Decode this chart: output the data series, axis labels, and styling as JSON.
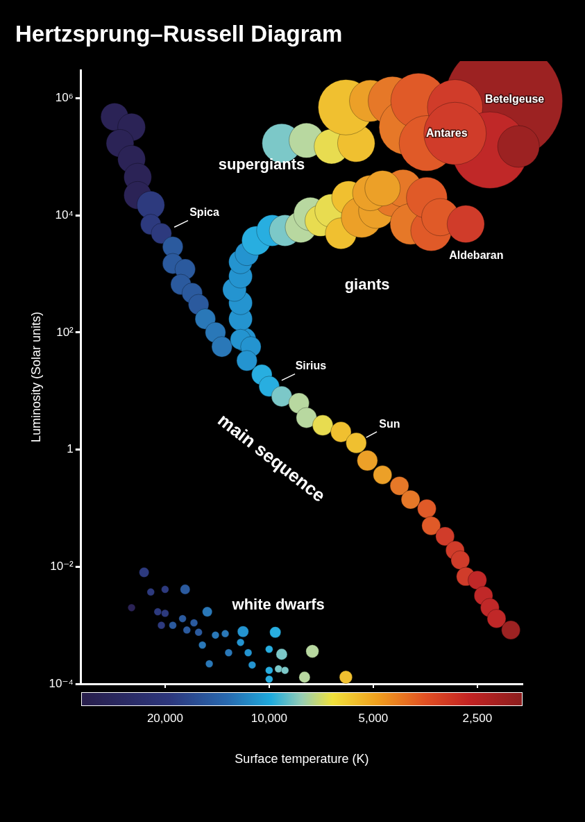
{
  "chart_data": {
    "type": "bubble",
    "title": "Hertzsprung–Russell Diagram",
    "xlabel": "Surface temperature (K)",
    "ylabel": "Luminosity (Solar units)",
    "log": "xy",
    "xlim": [
      35000,
      1850
    ],
    "xticks": [
      {
        "value": 20000,
        "label": "20,000"
      },
      {
        "value": 10000,
        "label": "10,000"
      },
      {
        "value": 5000,
        "label": "5,000"
      },
      {
        "value": 2500,
        "label": "2,500"
      }
    ],
    "ylim": [
      0.0001,
      3000000
    ],
    "yticks": [
      {
        "value": 0.0001,
        "label": "10⁻⁴"
      },
      {
        "value": 0.01,
        "label": "10⁻²"
      },
      1,
      {
        "value": 100,
        "label": "10²"
      },
      {
        "value": 10000,
        "label": "10⁴"
      },
      {
        "value": 1000000,
        "label": "10⁶"
      }
    ],
    "grid": false,
    "legend": false,
    "series": [
      {
        "name": "main sequence",
        "x": [
          28000,
          25000,
          27000,
          25000,
          24000,
          24000,
          22000,
          22000,
          20500,
          19000,
          19000,
          17500,
          18000,
          16700,
          16000,
          15300,
          14300,
          13700,
          12100,
          11300,
          11600,
          10500,
          10000,
          9200,
          8200,
          7800,
          7000,
          6200,
          5600,
          5200,
          4700,
          4200,
          3900,
          3500,
          3400,
          3100,
          2900,
          2800,
          2700,
          2500,
          2400,
          2300,
          2200,
          2000
        ],
        "values": [
          480000,
          320000,
          170000,
          91000,
          45000,
          22000,
          15000,
          7000,
          4900,
          2900,
          1500,
          1200,
          660,
          470,
          300,
          170,
          100,
          57,
          76,
          57,
          33,
          19,
          12,
          8.1,
          6.2,
          3.5,
          2.6,
          2.0,
          1.3,
          0.65,
          0.37,
          0.24,
          0.14,
          0.098,
          0.05,
          0.033,
          0.019,
          0.013,
          0.0068,
          0.0059,
          0.0032,
          0.002,
          0.0013,
          0.00083
        ],
        "colors": [
          "#2b2356",
          "#2b2356",
          "#2b2356",
          "#2b2356",
          "#2b2356",
          "#2b2356",
          "#2d3a7e",
          "#2d3a7e",
          "#2d3a7e",
          "#2b5a9e",
          "#2b5a9e",
          "#2b5a9e",
          "#2b5a9e",
          "#2b5a9e",
          "#2b5a9e",
          "#2a78b8",
          "#2a78b8",
          "#2a78b8",
          "#2494d0",
          "#2494d0",
          "#2494d0",
          "#28aee0",
          "#28aee0",
          "#7cc8c8",
          "#b8d8a0",
          "#b8d8a0",
          "#e8dc50",
          "#f0c030",
          "#f0c030",
          "#eca028",
          "#eca028",
          "#e67828",
          "#e67828",
          "#e05a28",
          "#e05a28",
          "#d03c2a",
          "#d03c2a",
          "#d03c2a",
          "#d03c2a",
          "#c02828",
          "#c02828",
          "#c02828",
          "#c02828",
          "#9c2222"
        ],
        "sizes": [
          0.055,
          0.055,
          0.055,
          0.055,
          0.055,
          0.055,
          0.055,
          0.03,
          0.03,
          0.03,
          0.03,
          0.03,
          0.03,
          0.03,
          0.03,
          0.03,
          0.03,
          0.03,
          0.03,
          0.03,
          0.03,
          0.03,
          0.03,
          0.03,
          0.03,
          0.03,
          0.03,
          0.03,
          0.03,
          0.03,
          0.025,
          0.025,
          0.025,
          0.025,
          0.025,
          0.025,
          0.025,
          0.025,
          0.025,
          0.025,
          0.025,
          0.025,
          0.025,
          0.025
        ]
      },
      {
        "name": "giants",
        "x": [
          11800,
          12100,
          12100,
          12600,
          12100,
          12100,
          11600,
          10900,
          9800,
          9000,
          8100,
          7600,
          7100,
          6600,
          6200,
          5900,
          5400,
          4900,
          4400,
          4100,
          3900,
          3400,
          3500,
          3200,
          2700,
          5100,
          4700
        ],
        "values": [
          76,
          170,
          320,
          540,
          910,
          1600,
          2200,
          3700,
          5500,
          5500,
          6300,
          10500,
          8100,
          12000,
          4900,
          20000,
          9300,
          12000,
          20000,
          29000,
          7100,
          5500,
          20000,
          9300,
          7100,
          24000,
          29000
        ],
        "colors": [
          "#2494d0",
          "#2494d0",
          "#2494d0",
          "#2494d0",
          "#2494d0",
          "#2494d0",
          "#2494d0",
          "#28aee0",
          "#28aee0",
          "#7cc8c8",
          "#b8d8a0",
          "#b8d8a0",
          "#e8dc50",
          "#e8dc50",
          "#f0c030",
          "#f0c030",
          "#eca028",
          "#eca028",
          "#e67828",
          "#e67828",
          "#e67828",
          "#e05a28",
          "#e05a28",
          "#e05a28",
          "#d03c2a",
          "#eca028",
          "#eca028"
        ],
        "sizes": [
          0.04,
          0.04,
          0.04,
          0.04,
          0.04,
          0.04,
          0.04,
          0.06,
          0.07,
          0.07,
          0.07,
          0.08,
          0.07,
          0.08,
          0.07,
          0.08,
          0.12,
          0.09,
          0.1,
          0.1,
          0.12,
          0.12,
          0.12,
          0.1,
          0.1,
          0.09,
          0.09
        ]
      },
      {
        "name": "supergiants",
        "x": [
          2100,
          9200,
          7800,
          6600,
          5600,
          6000,
          5100,
          4400,
          4000,
          3700,
          3500,
          2900,
          2300,
          2900,
          1900
        ],
        "values": [
          900000,
          170000,
          190000,
          150000,
          170000,
          700000,
          900000,
          900000,
          320000,
          900000,
          170000,
          700000,
          130000,
          250000,
          150000
        ],
        "colors": [
          "#9c2222",
          "#7cc8c8",
          "#b8d8a0",
          "#e8dc50",
          "#f0c030",
          "#f0c030",
          "#eca028",
          "#e67828",
          "#e67828",
          "#e05a28",
          "#e05a28",
          "#d03c2a",
          "#c02828",
          "#d03c2a",
          "#9c2222"
        ],
        "sizes": [
          1,
          0.11,
          0.087,
          0.087,
          0.1,
          0.22,
          0.125,
          0.17,
          0.22,
          0.22,
          0.22,
          0.22,
          0.42,
          0.28,
          0.125
        ]
      },
      {
        "name": "white dwarfs",
        "x": [
          23000,
          25000,
          22000,
          20000,
          17500,
          21000,
          20000,
          20500,
          19000,
          17800,
          16500,
          15100,
          16000,
          17300,
          15600,
          14300,
          13400,
          13100,
          12100,
          11900,
          11500,
          11200,
          14900,
          10000,
          9600,
          9200,
          9400,
          9000,
          10000,
          10000,
          7500,
          7900,
          6000
        ],
        "values": [
          0.008,
          0.002,
          0.0037,
          0.0041,
          0.0041,
          0.0017,
          0.0016,
          0.001,
          0.001,
          0.0013,
          0.0011,
          0.0017,
          0.00076,
          0.00083,
          0.00046,
          0.00068,
          0.00072,
          0.00034,
          0.00051,
          0.00078,
          0.00034,
          0.00021,
          0.00022,
          0.00039,
          0.00076,
          0.00032,
          0.00018,
          0.00017,
          0.00017,
          0.00012,
          0.00036,
          0.00013,
          0.00013
        ],
        "colors": [
          "#2d3a7e",
          "#2b2356",
          "#2d3a7e",
          "#2d3a7e",
          "#2b5a9e",
          "#2d3a7e",
          "#2d3a7e",
          "#2d3a7e",
          "#2b5a9e",
          "#2b5a9e",
          "#2b5a9e",
          "#2a78b8",
          "#2b5a9e",
          "#2b5a9e",
          "#2a78b8",
          "#2a78b8",
          "#2a78b8",
          "#2a78b8",
          "#2494d0",
          "#2494d0",
          "#2494d0",
          "#2494d0",
          "#2a78b8",
          "#28aee0",
          "#28aee0",
          "#7cc8c8",
          "#7cc8c8",
          "#7cc8c8",
          "#28aee0",
          "#28aee0",
          "#b8d8a0",
          "#b8d8a0",
          "#f0c030"
        ],
        "sizes": [
          0.007,
          0.004,
          0.004,
          0.004,
          0.007,
          0.004,
          0.004,
          0.004,
          0.004,
          0.004,
          0.004,
          0.007,
          0.004,
          0.004,
          0.004,
          0.004,
          0.004,
          0.004,
          0.004,
          0.009,
          0.004,
          0.004,
          0.004,
          0.004,
          0.009,
          0.009,
          0.004,
          0.004,
          0.004,
          0.004,
          0.012,
          0.009,
          0.012
        ]
      }
    ],
    "annotations": [
      {
        "text": "Betelgeuse",
        "x": 2100,
        "y": 900000
      },
      {
        "text": "Antares",
        "x": 2900,
        "y": 250000
      },
      {
        "text": "Spica",
        "x": 20500,
        "y": 4900
      },
      {
        "text": "Aldebaran",
        "x": 3400,
        "y": 5500
      },
      {
        "text": "Sirius",
        "x": 10000,
        "y": 12
      },
      {
        "text": "Sun",
        "x": 5600,
        "y": 1.3
      }
    ]
  }
}
